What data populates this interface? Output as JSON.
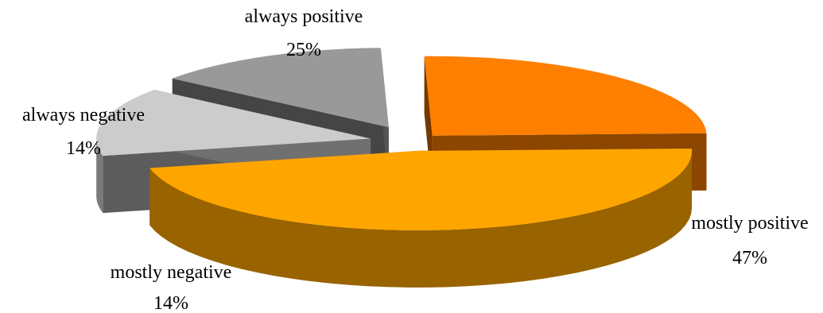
{
  "chart_data": {
    "type": "pie",
    "title": "",
    "legend": "none",
    "slices": [
      {
        "label": "always positive",
        "value": 25,
        "value_label": "25%",
        "color": "#FF7F00"
      },
      {
        "label": "mostly positive",
        "value": 47,
        "value_label": "47%",
        "color": "#FFA500"
      },
      {
        "label": "mostly negative",
        "value": 14,
        "value_label": "14%",
        "color": "#CCCCCC"
      },
      {
        "label": "always negative",
        "value": 14,
        "value_label": "14%",
        "color": "#999999"
      }
    ]
  }
}
